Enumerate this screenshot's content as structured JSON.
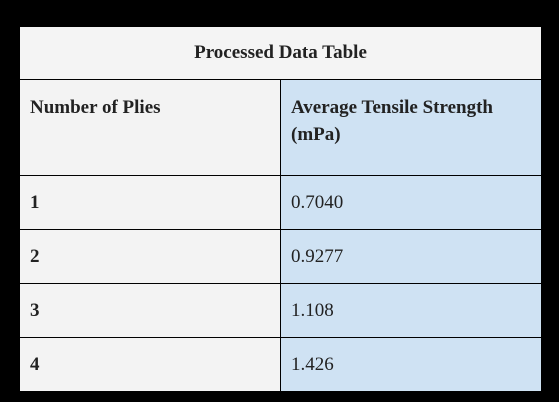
{
  "table": {
    "title": "Processed Data Table",
    "header": [
      "Number of Plies",
      "Average Tensile Strength (mPa)"
    ],
    "rows": [
      [
        "1",
        "0.7040"
      ],
      [
        "2",
        "0.9277"
      ],
      [
        "3",
        "1.108"
      ],
      [
        "4",
        "1.426"
      ]
    ]
  }
}
